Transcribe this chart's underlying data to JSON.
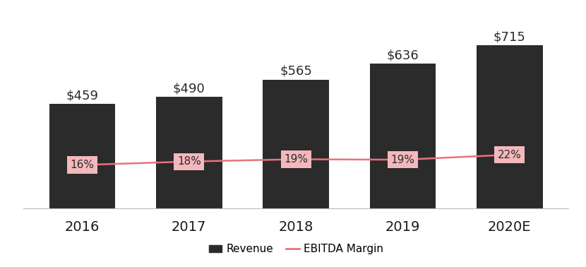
{
  "categories": [
    "2016",
    "2017",
    "2018",
    "2019",
    "2020E"
  ],
  "revenues": [
    459,
    490,
    565,
    636,
    715
  ],
  "revenue_labels": [
    "$459",
    "$490",
    "$565",
    "$636",
    "$715"
  ],
  "ebitda_labels": [
    "16%",
    "18%",
    "19%",
    "19%",
    "22%"
  ],
  "bar_color": "#2b2b2b",
  "line_color": "#e8737a",
  "ebitda_box_color": "#f4b8bc",
  "background_color": "#ffffff",
  "bar_width": 0.62,
  "ylim_bar": [
    0,
    820
  ],
  "legend_revenue": "Revenue",
  "legend_ebitda": "EBITDA Margin",
  "line_y_values": [
    190,
    205,
    215,
    213,
    235
  ],
  "figsize": [
    8.3,
    3.78
  ],
  "dpi": 100,
  "revenue_label_fontsize": 13,
  "xtick_fontsize": 14,
  "ebitda_label_fontsize": 11
}
